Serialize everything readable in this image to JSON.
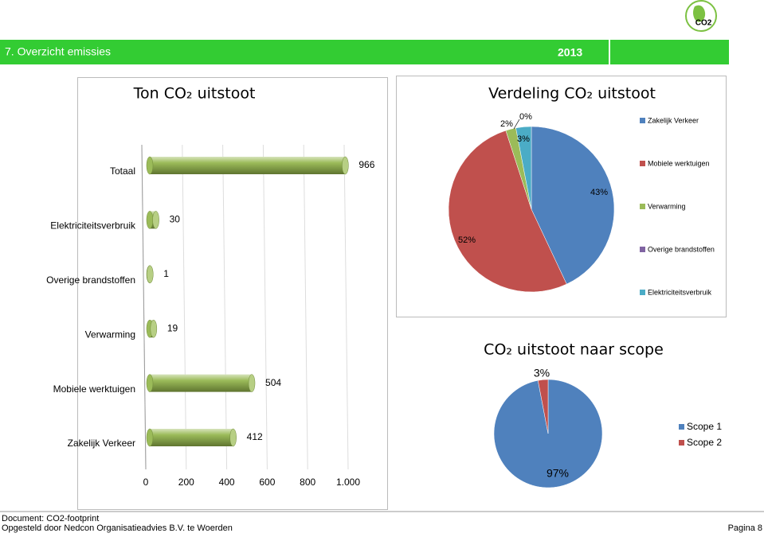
{
  "header": {
    "title": "7. Overzicht emissies",
    "year": "2013",
    "logo": "CO2"
  },
  "chart_data": [
    {
      "type": "hbar",
      "title": "Ton CO₂ uitstoot",
      "categories": [
        "Totaal",
        "Elektriciteitsverbruik",
        "Overige brandstoffen",
        "Verwarming",
        "Mobiele werktuigen",
        "Zakelijk Verkeer"
      ],
      "values": [
        966,
        30,
        1,
        19,
        504,
        412
      ],
      "color": "#9bbb59",
      "xlim": [
        0,
        1000
      ],
      "xticks": [
        0,
        200,
        400,
        600,
        800,
        {
          "value": 1000,
          "label": "1.000"
        }
      ],
      "grid": true
    },
    {
      "type": "pie",
      "title": "Verdeling CO₂ uitstoot",
      "series": [
        {
          "name": "Zakelijk Verkeer",
          "color": "#4f81bd",
          "values": [
            43
          ],
          "value_labels": [
            "43%"
          ]
        },
        {
          "name": "Mobiele werktuigen",
          "color": "#c0504d",
          "values": [
            52
          ],
          "value_labels": [
            "52%"
          ]
        },
        {
          "name": "Verwarming",
          "color": "#9bbb59",
          "values": [
            2
          ],
          "value_labels": [
            "2%"
          ]
        },
        {
          "name": "Overige brandstoffen",
          "color": "#8064a2",
          "values": [
            0
          ],
          "value_labels": [
            "0%"
          ]
        },
        {
          "name": "Elektriciteitsverbruik",
          "color": "#4bacc6",
          "values": [
            3
          ],
          "value_labels": [
            "3%"
          ]
        }
      ],
      "legend": "right"
    },
    {
      "type": "pie",
      "title": "CO₂ uitstoot naar scope",
      "series": [
        {
          "name": "Scope 1",
          "color": "#4f81bd",
          "values": [
            97
          ],
          "value_labels": [
            "97%"
          ]
        },
        {
          "name": "Scope 2",
          "color": "#c0504d",
          "values": [
            3
          ],
          "value_labels": [
            "3%"
          ]
        }
      ],
      "legend": "right"
    }
  ],
  "footer": {
    "document": "Document: CO2-footprint",
    "author": "Opgesteld door Nedcon Organisatieadvies B.V. te Woerden",
    "page": "Pagina 8"
  }
}
